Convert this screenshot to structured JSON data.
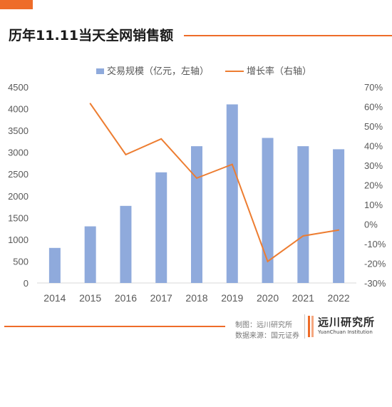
{
  "title": "历年11.11当天全网销售额",
  "credit": {
    "made_by": "制图：远川研究所",
    "source": "数据来源：国元证券"
  },
  "logo": {
    "name_cn": "远川研究所",
    "name_en": "YuanChuan Institution"
  },
  "colors": {
    "accent": "#ee6c29",
    "bar": "#8faadc",
    "line": "#ed7d31"
  },
  "chart_data": {
    "type": "bar",
    "categories": [
      "2014",
      "2015",
      "2016",
      "2017",
      "2018",
      "2019",
      "2020",
      "2021",
      "2022"
    ],
    "series": [
      {
        "name": "交易规模（亿元，左轴）",
        "type": "bar",
        "axis": "left",
        "values": [
          805,
          1300,
          1770,
          2540,
          3140,
          4100,
          3330,
          3140,
          3070
        ]
      },
      {
        "name": "增长率（右轴）",
        "type": "line",
        "axis": "right",
        "values": [
          null,
          61.5,
          35.5,
          43.5,
          23.5,
          30.5,
          -19,
          -6,
          -3
        ]
      }
    ],
    "ylim_left": [
      0,
      4500
    ],
    "yticks_left": [
      "0",
      "500",
      "1000",
      "1500",
      "2000",
      "2500",
      "3000",
      "3500",
      "4000",
      "4500"
    ],
    "ylim_right": [
      -30,
      70
    ],
    "yticks_right": [
      "-30%",
      "-20%",
      "-10%",
      "0%",
      "10%",
      "20%",
      "30%",
      "40%",
      "50%",
      "60%",
      "70%"
    ],
    "legend_position": "top",
    "grid": false
  }
}
